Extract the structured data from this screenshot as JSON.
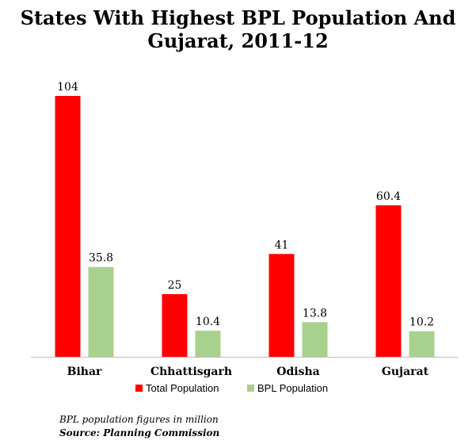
{
  "chart_data": {
    "type": "bar",
    "title_line1": "States With Highest BPL Population And",
    "title_line2": "Gujarat, 2011-12",
    "categories": [
      "Bihar",
      "Chhattisgarh",
      "Odisha",
      "Gujarat"
    ],
    "series": [
      {
        "name": "Total Population",
        "color": "#ff0000",
        "values": [
          104,
          25,
          41,
          60.4
        ]
      },
      {
        "name": "BPL Population",
        "color": "#a9d18e",
        "values": [
          35.8,
          10.4,
          13.8,
          10.2
        ]
      }
    ],
    "ylim": [
      0,
      104
    ],
    "grid": false,
    "legend": "bottom"
  },
  "footnote": {
    "note": "BPL population figures in million",
    "source": "Source: Planning Commission"
  }
}
